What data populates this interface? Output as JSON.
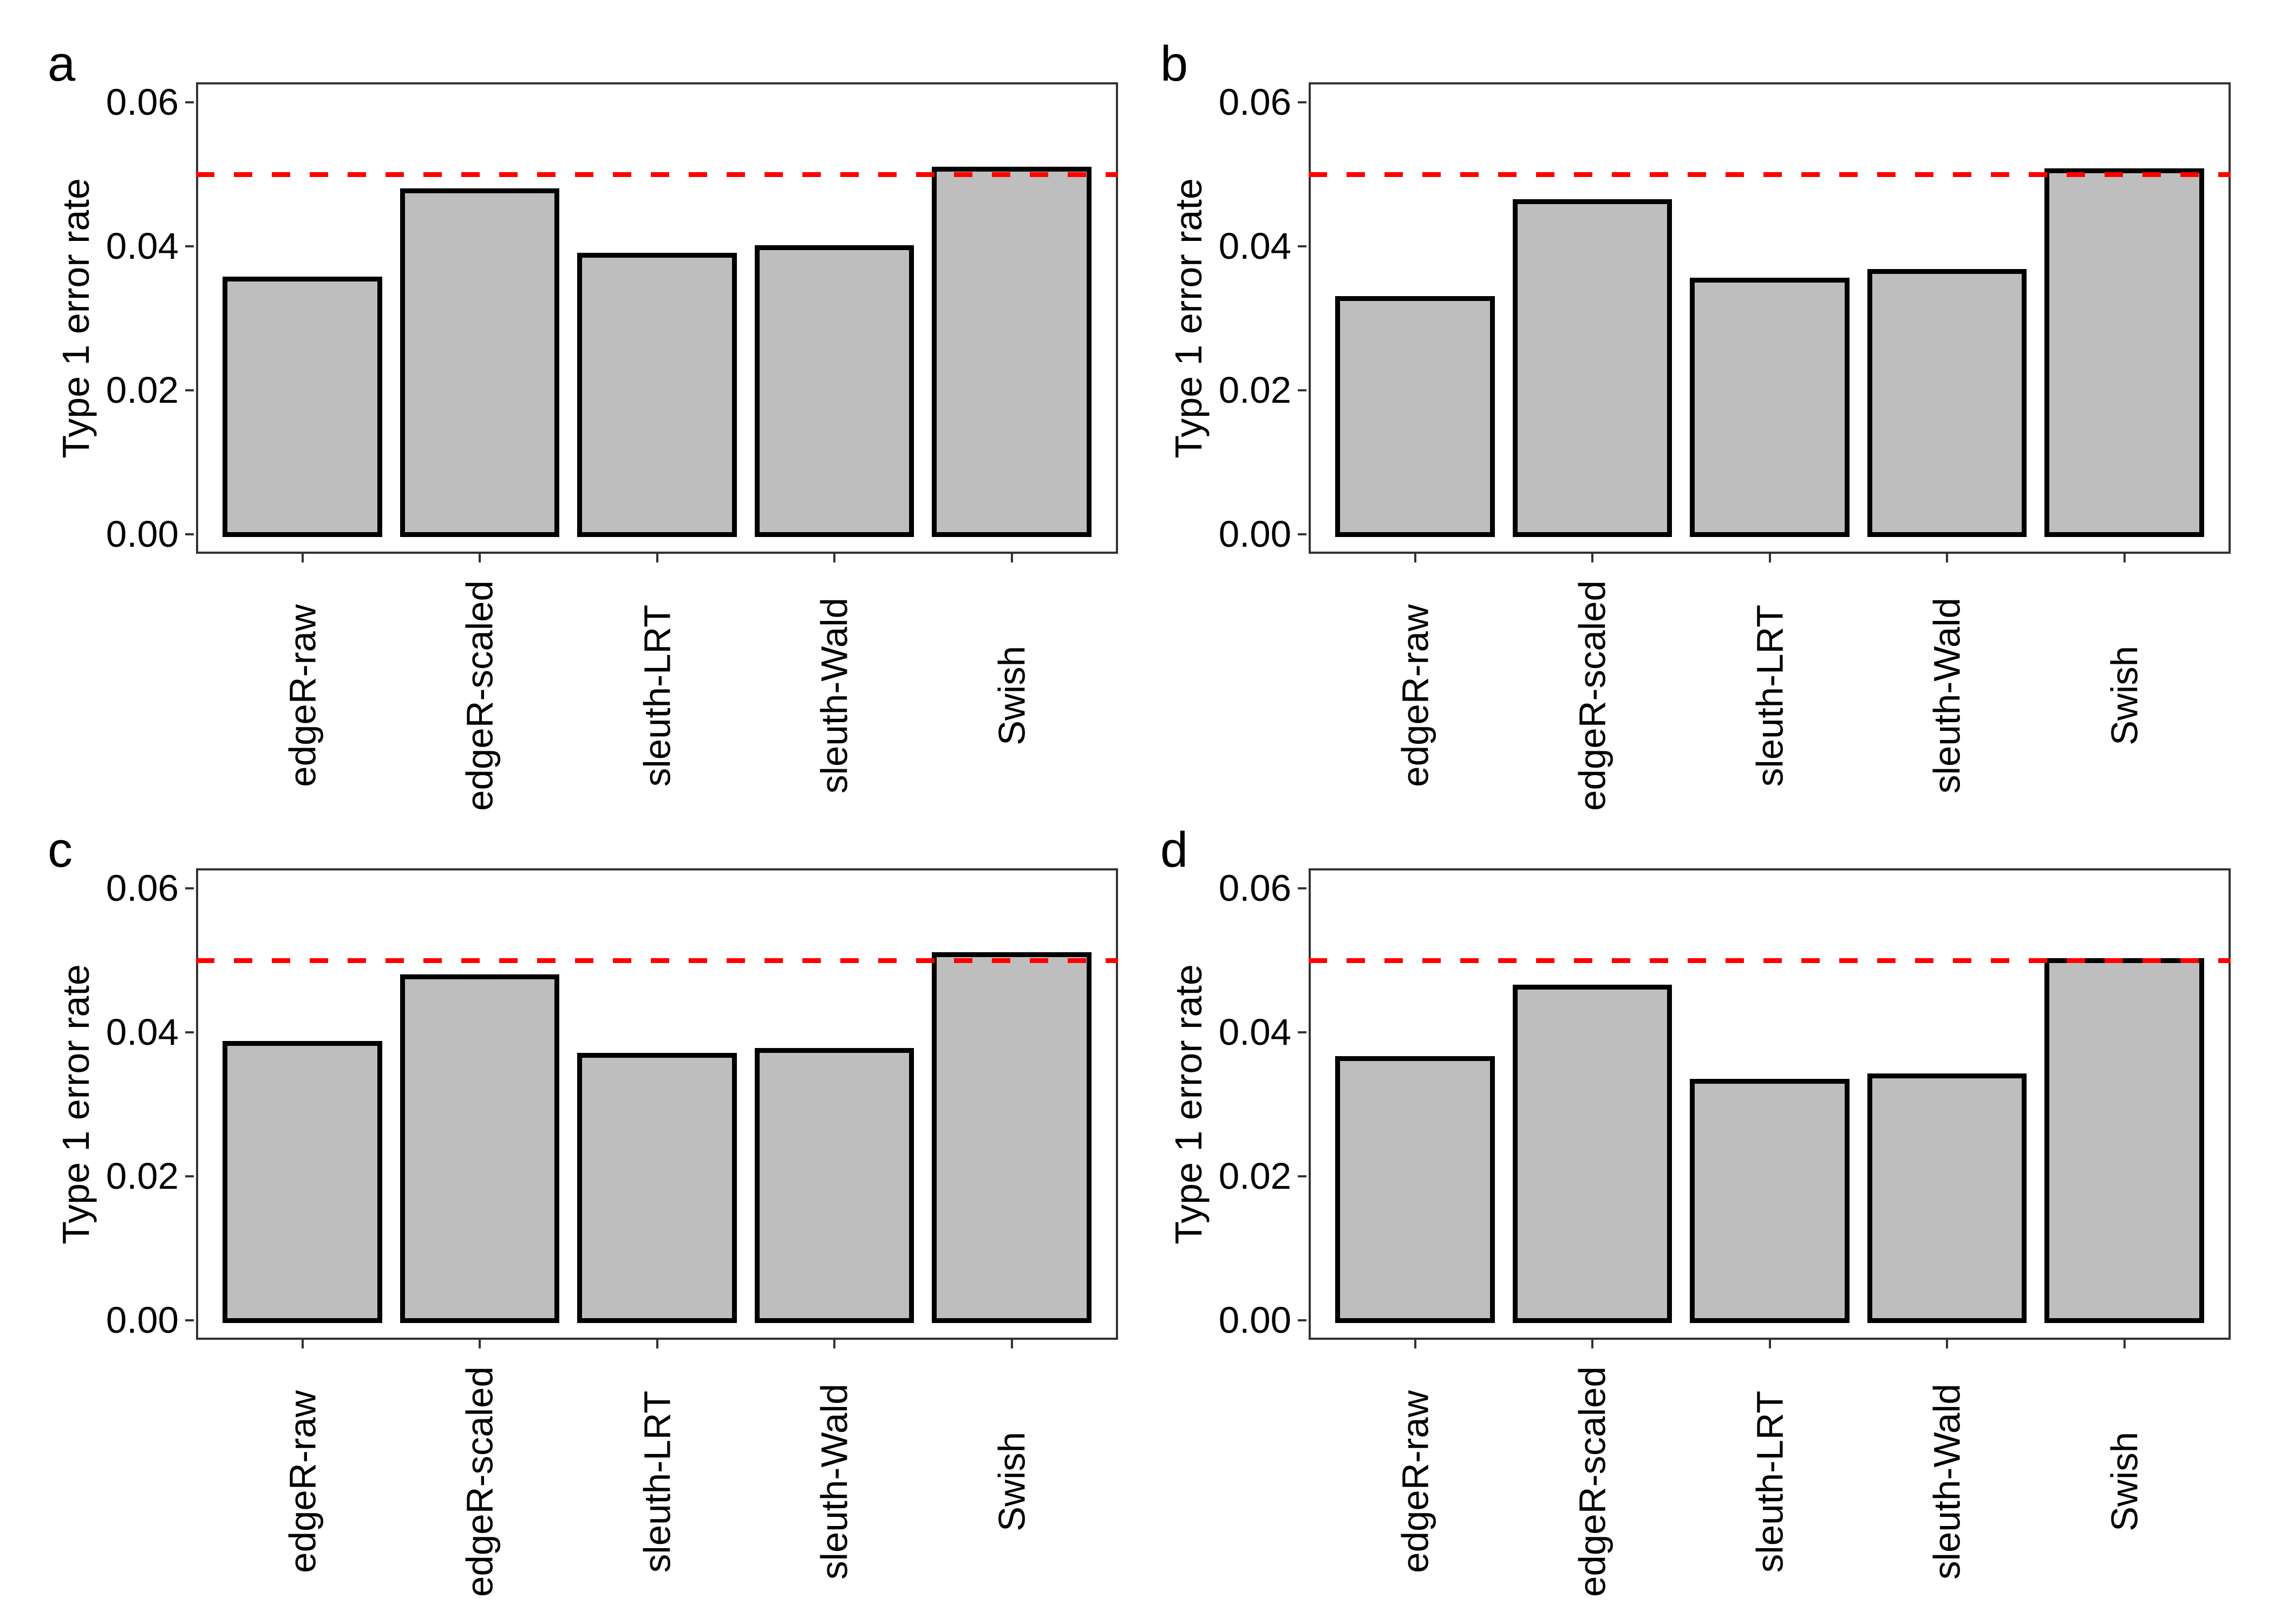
{
  "styles": {
    "background": "#ffffff",
    "bar_fill": "#bebebe",
    "bar_stroke": "#000000",
    "threshold_color": "#ff0000",
    "axis_color": "#333333",
    "text_color": "#000000"
  },
  "chart_data": [
    {
      "type": "bar",
      "panel_label": "a",
      "categories": [
        "edgeR-raw",
        "edgeR-scaled",
        "sleuth-LRT",
        "sleuth-Wald",
        "Swish"
      ],
      "values": [
        0.0355,
        0.0477,
        0.0388,
        0.0398,
        0.0507
      ],
      "ylabel": "Type 1 error rate",
      "xlabel": "",
      "ytick_labels": [
        "0.00",
        "0.02",
        "0.04",
        "0.06"
      ],
      "ytick_values": [
        0,
        0.02,
        0.04,
        0.06
      ],
      "ylim": [
        0,
        0.06
      ],
      "threshold": 0.05,
      "threshold_style": "dashed",
      "grid": "off",
      "legend": "none"
    },
    {
      "type": "bar",
      "panel_label": "b",
      "categories": [
        "edgeR-raw",
        "edgeR-scaled",
        "sleuth-LRT",
        "sleuth-Wald",
        "Swish"
      ],
      "values": [
        0.0328,
        0.0462,
        0.0353,
        0.0365,
        0.0505
      ],
      "ylabel": "Type 1 error rate",
      "xlabel": "",
      "ytick_labels": [
        "0.00",
        "0.02",
        "0.04",
        "0.06"
      ],
      "ytick_values": [
        0,
        0.02,
        0.04,
        0.06
      ],
      "ylim": [
        0,
        0.06
      ],
      "threshold": 0.05,
      "threshold_style": "dashed",
      "grid": "off",
      "legend": "none"
    },
    {
      "type": "bar",
      "panel_label": "c",
      "categories": [
        "edgeR-raw",
        "edgeR-scaled",
        "sleuth-LRT",
        "sleuth-Wald",
        "Swish"
      ],
      "values": [
        0.0385,
        0.0477,
        0.0368,
        0.0375,
        0.0508
      ],
      "ylabel": "Type 1 error rate",
      "xlabel": "",
      "ytick_labels": [
        "0.00",
        "0.02",
        "0.04",
        "0.06"
      ],
      "ytick_values": [
        0,
        0.02,
        0.04,
        0.06
      ],
      "ylim": [
        0,
        0.06
      ],
      "threshold": 0.05,
      "threshold_style": "dashed",
      "grid": "off",
      "legend": "none"
    },
    {
      "type": "bar",
      "panel_label": "d",
      "categories": [
        "edgeR-raw",
        "edgeR-scaled",
        "sleuth-LRT",
        "sleuth-Wald",
        "Swish"
      ],
      "values": [
        0.0364,
        0.0463,
        0.0332,
        0.034,
        0.05
      ],
      "ylabel": "Type 1 error rate",
      "xlabel": "",
      "ytick_labels": [
        "0.00",
        "0.02",
        "0.04",
        "0.06"
      ],
      "ytick_values": [
        0,
        0.02,
        0.04,
        0.06
      ],
      "ylim": [
        0,
        0.06
      ],
      "threshold": 0.05,
      "threshold_style": "dashed",
      "grid": "off",
      "legend": "none"
    }
  ]
}
